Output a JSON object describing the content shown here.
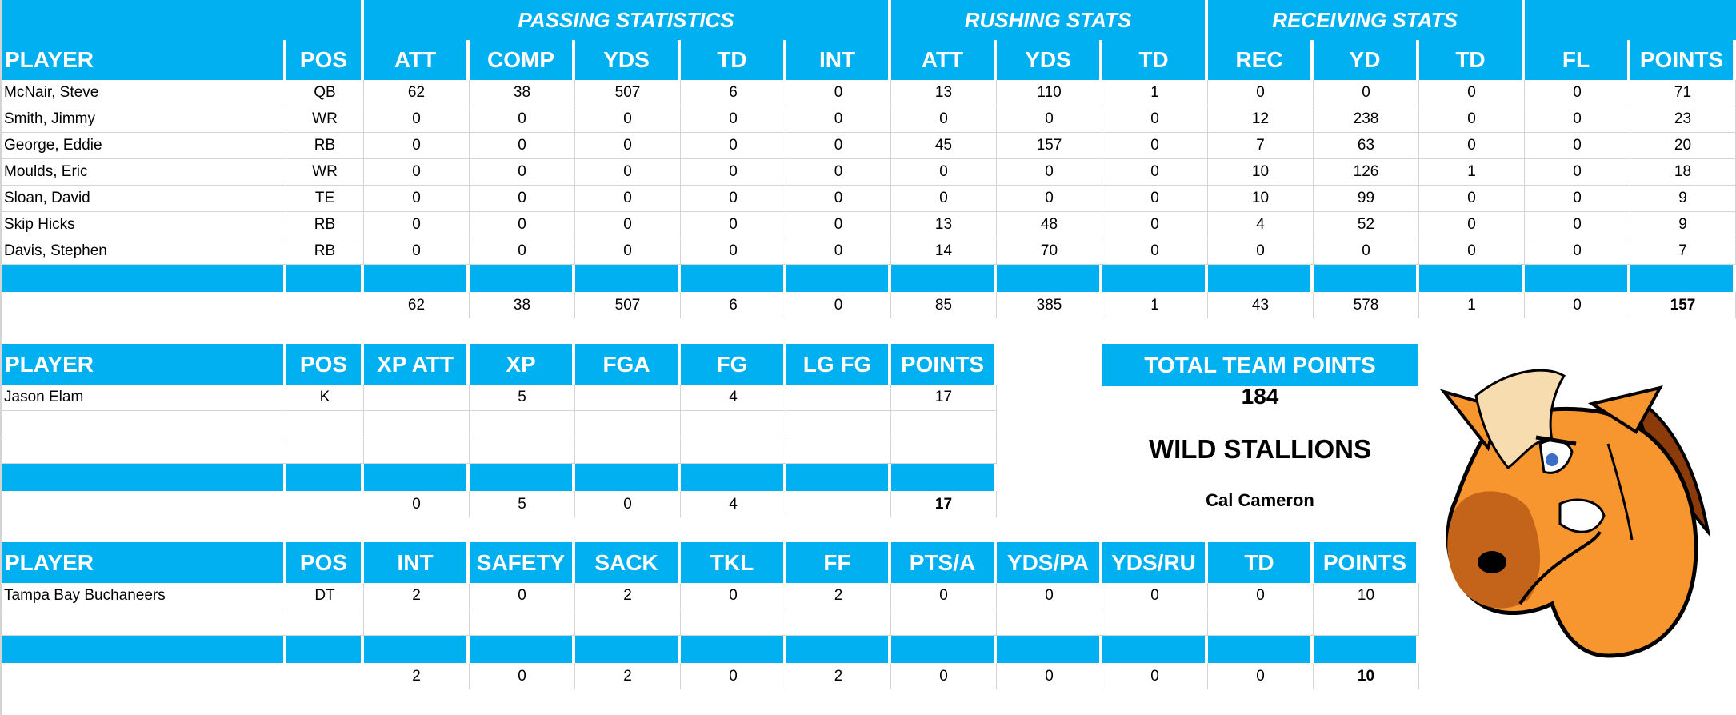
{
  "offense": {
    "group_headers": {
      "passing": "PASSING STATISTICS",
      "rushing": "RUSHING STATS",
      "receiving": "RECEIVING STATS"
    },
    "columns": [
      "PLAYER",
      "POS",
      "ATT",
      "COMP",
      "YDS",
      "TD",
      "INT",
      "ATT",
      "YDS",
      "TD",
      "REC",
      "YD",
      "TD",
      "FL",
      "POINTS"
    ],
    "rows": [
      [
        "McNair, Steve",
        "QB",
        "62",
        "38",
        "507",
        "6",
        "0",
        "13",
        "110",
        "1",
        "0",
        "0",
        "0",
        "0",
        "71"
      ],
      [
        "Smith, Jimmy",
        "WR",
        "0",
        "0",
        "0",
        "0",
        "0",
        "0",
        "0",
        "0",
        "12",
        "238",
        "0",
        "0",
        "23"
      ],
      [
        "George, Eddie",
        "RB",
        "0",
        "0",
        "0",
        "0",
        "0",
        "45",
        "157",
        "0",
        "7",
        "63",
        "0",
        "0",
        "20"
      ],
      [
        "Moulds, Eric",
        "WR",
        "0",
        "0",
        "0",
        "0",
        "0",
        "0",
        "0",
        "0",
        "10",
        "126",
        "1",
        "0",
        "18"
      ],
      [
        "Sloan, David",
        "TE",
        "0",
        "0",
        "0",
        "0",
        "0",
        "0",
        "0",
        "0",
        "10",
        "99",
        "0",
        "0",
        "9"
      ],
      [
        "Skip Hicks",
        "RB",
        "0",
        "0",
        "0",
        "0",
        "0",
        "13",
        "48",
        "0",
        "4",
        "52",
        "0",
        "0",
        "9"
      ],
      [
        "Davis, Stephen",
        "RB",
        "0",
        "0",
        "0",
        "0",
        "0",
        "14",
        "70",
        "0",
        "0",
        "0",
        "0",
        "0",
        "7"
      ]
    ],
    "totals": [
      "",
      "",
      "62",
      "38",
      "507",
      "6",
      "0",
      "85",
      "385",
      "1",
      "43",
      "578",
      "1",
      "0",
      "157"
    ]
  },
  "kicking": {
    "columns": [
      "PLAYER",
      "POS",
      "XP ATT",
      "XP",
      "FGA",
      "FG",
      "LG FG",
      "POINTS"
    ],
    "rows": [
      [
        "Jason Elam",
        "K",
        "",
        "5",
        "",
        "4",
        "",
        "17"
      ],
      [
        "",
        "",
        "",
        "",
        "",
        "",
        "",
        ""
      ],
      [
        "",
        "",
        "",
        "",
        "",
        "",
        "",
        ""
      ]
    ],
    "totals": [
      "",
      "",
      "0",
      "5",
      "0",
      "4",
      "",
      "17"
    ]
  },
  "defense": {
    "columns": [
      "PLAYER",
      "POS",
      "INT",
      "SAFETY",
      "SACK",
      "TKL",
      "FF",
      "PTS/A",
      "YDS/PA",
      "YDS/RU",
      "TD",
      "POINTS"
    ],
    "rows": [
      [
        "Tampa Bay Buchaneers",
        "DT",
        "2",
        "0",
        "2",
        "0",
        "2",
        "0",
        "0",
        "0",
        "0",
        "10"
      ],
      [
        "",
        "",
        "",
        "",
        "",
        "",
        "",
        "",
        "",
        "",
        "",
        ""
      ]
    ],
    "totals": [
      "",
      "",
      "2",
      "0",
      "2",
      "0",
      "2",
      "0",
      "0",
      "0",
      "0",
      "10"
    ]
  },
  "summary": {
    "total_label": "TOTAL TEAM POINTS",
    "total_value": "184",
    "team_name": "WILD STALLIONS",
    "owner": "Cal Cameron",
    "logo": "horse-mascot-icon"
  },
  "colors": {
    "header_blue": "#00b0f0",
    "grid": "#d4d4d4"
  }
}
